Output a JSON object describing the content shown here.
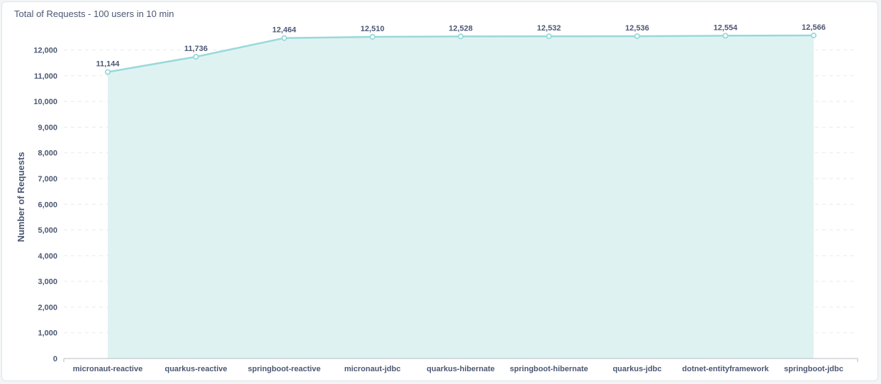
{
  "card": {
    "title": "Total of Requests - 100 users in 10 min"
  },
  "chart_data": {
    "type": "area",
    "title": "Total of Requests - 100 users in 10 min",
    "xlabel": "",
    "ylabel": "Number of Requests",
    "ylim": [
      0,
      12566
    ],
    "yticks": [
      0,
      1000,
      2000,
      3000,
      4000,
      5000,
      6000,
      7000,
      8000,
      9000,
      10000,
      11000,
      12000
    ],
    "grid": true,
    "categories": [
      "micronaut-reactive",
      "quarkus-reactive",
      "springboot-reactive",
      "micronaut-jdbc",
      "quarkus-hibernate",
      "springboot-hibernate",
      "quarkus-jdbc",
      "dotnet-entityframework",
      "springboot-jdbc"
    ],
    "values": [
      11144,
      11736,
      12464,
      12510,
      12528,
      12532,
      12536,
      12554,
      12566
    ],
    "colors": {
      "line": "#98d9d9",
      "area": "#dff2f2",
      "text": "#4c5773",
      "grid": "#e8eaed"
    }
  }
}
